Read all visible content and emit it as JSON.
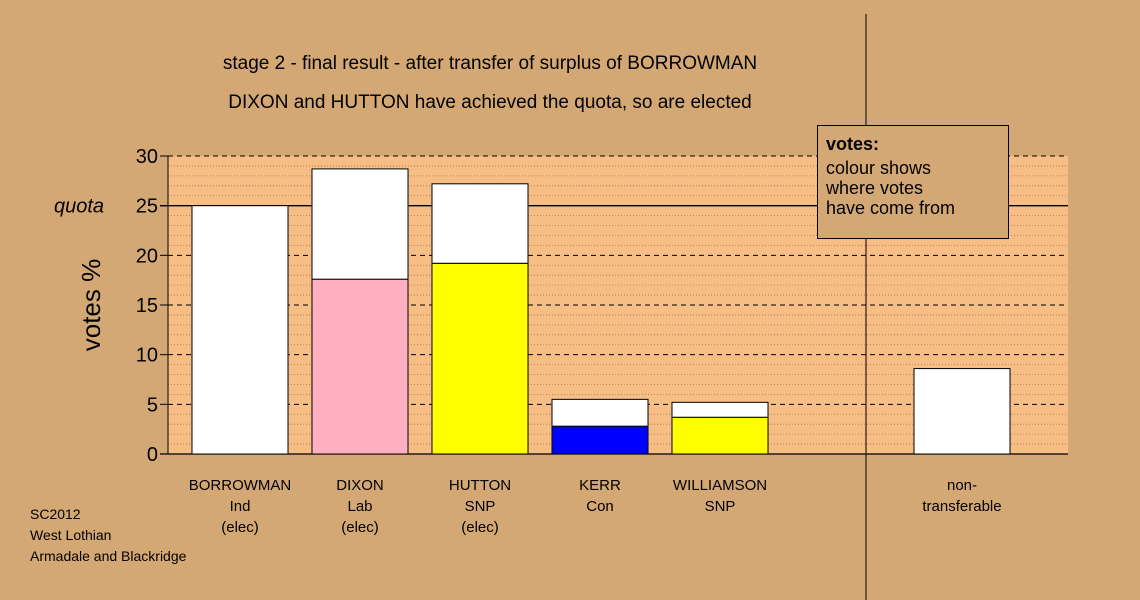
{
  "title": "stage 2 - final result - after transfer of surplus of BORROWMAN",
  "subtitle": "DIXON and HUTTON have achieved the quota, so are elected",
  "legend": {
    "title": "votes:",
    "lines": [
      "colour shows",
      "where votes",
      "have come from"
    ]
  },
  "credits": [
    "SC2012",
    "West Lothian",
    "Armadale and Blackridge"
  ],
  "colors": {
    "background": "#d4a874",
    "plot_area": "#f6bd84",
    "transferred": "#ffffff",
    "Lab": "#ffb0c0",
    "SNP": "#ffff00",
    "Con": "#0000ff"
  },
  "chart_data": {
    "type": "bar",
    "stacked": true,
    "ylabel": "votes %",
    "ylim": [
      0,
      30
    ],
    "yticks": [
      0,
      5,
      10,
      15,
      20,
      25,
      30
    ],
    "quota": 25,
    "quota_label": "quota",
    "grid": true,
    "categories": [
      {
        "lines": [
          "BORROWMAN",
          "Ind",
          "(elec)"
        ],
        "segments": [
          {
            "color": "#ffffff",
            "value": 25.0
          }
        ]
      },
      {
        "lines": [
          "DIXON",
          "Lab",
          "(elec)"
        ],
        "segments": [
          {
            "color": "#ffb0c0",
            "value": 17.6
          },
          {
            "color": "#ffffff",
            "value": 11.1
          }
        ]
      },
      {
        "lines": [
          "HUTTON",
          "SNP",
          "(elec)"
        ],
        "segments": [
          {
            "color": "#ffff00",
            "value": 19.2
          },
          {
            "color": "#ffffff",
            "value": 8.0
          }
        ]
      },
      {
        "lines": [
          "KERR",
          "Con"
        ],
        "segments": [
          {
            "color": "#0000ff",
            "value": 2.8
          },
          {
            "color": "#ffffff",
            "value": 2.7
          }
        ]
      },
      {
        "lines": [
          "WILLIAMSON",
          "SNP"
        ],
        "segments": [
          {
            "color": "#ffff00",
            "value": 3.7
          },
          {
            "color": "#ffffff",
            "value": 1.5
          }
        ]
      },
      {
        "lines": [
          "non-",
          "transferable"
        ],
        "segments": [
          {
            "color": "#ffffff",
            "value": 8.6
          }
        ],
        "separate": true
      }
    ]
  }
}
